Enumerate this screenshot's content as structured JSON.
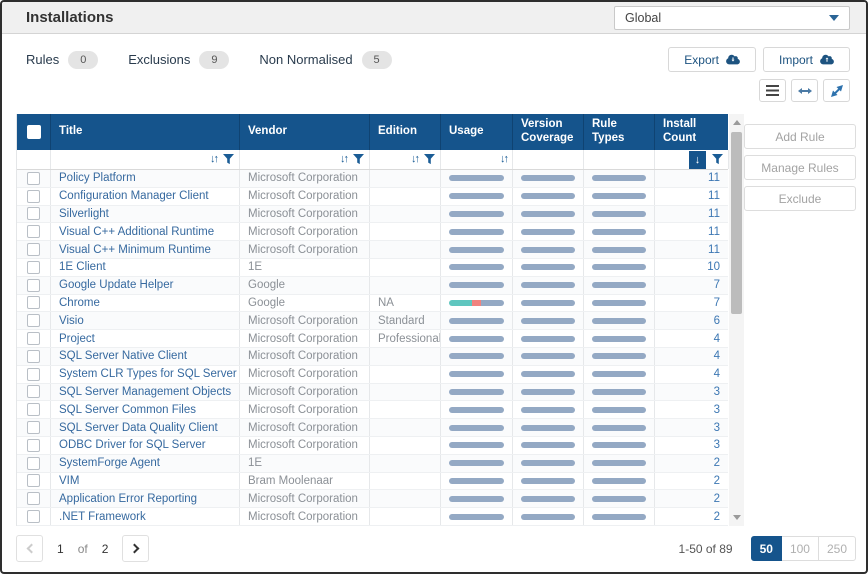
{
  "header": {
    "title": "Installations",
    "scope": {
      "value": "Global"
    }
  },
  "toolbar": {
    "tabs": [
      {
        "label": "Rules",
        "count": "0"
      },
      {
        "label": "Exclusions",
        "count": "9"
      },
      {
        "label": "Non Normalised",
        "count": "5"
      }
    ],
    "export_label": "Export",
    "import_label": "Import"
  },
  "table": {
    "columns": [
      "Title",
      "Vendor",
      "Edition",
      "Usage",
      "Version Coverage",
      "Rule Types",
      "Install Count"
    ],
    "default_bar": [
      [
        "#94a9c4",
        100
      ]
    ],
    "rows": [
      {
        "title": "Policy Platform",
        "vendor": "Microsoft Corporation",
        "edition": "",
        "count": "11"
      },
      {
        "title": "Configuration Manager Client",
        "vendor": "Microsoft Corporation",
        "edition": "",
        "count": "11"
      },
      {
        "title": "Silverlight",
        "vendor": "Microsoft Corporation",
        "edition": "",
        "count": "11"
      },
      {
        "title": "Visual C++ Additional Runtime",
        "vendor": "Microsoft Corporation",
        "edition": "",
        "count": "11"
      },
      {
        "title": "Visual C++ Minimum Runtime",
        "vendor": "Microsoft Corporation",
        "edition": "",
        "count": "11"
      },
      {
        "title": "1E Client",
        "vendor": "1E",
        "edition": "",
        "count": "10"
      },
      {
        "title": "Google Update Helper",
        "vendor": "Google",
        "edition": "",
        "count": "7"
      },
      {
        "title": "Chrome",
        "vendor": "Google",
        "edition": "NA",
        "count": "7",
        "usage": [
          [
            "#5fc6bf",
            41
          ],
          [
            "#f0837f",
            18
          ],
          [
            "#94a9c4",
            41
          ]
        ]
      },
      {
        "title": "Visio",
        "vendor": "Microsoft Corporation",
        "edition": "Standard",
        "count": "6"
      },
      {
        "title": "Project",
        "vendor": "Microsoft Corporation",
        "edition": "Professional",
        "count": "4"
      },
      {
        "title": "SQL Server Native Client",
        "vendor": "Microsoft Corporation",
        "edition": "",
        "count": "4"
      },
      {
        "title": "System CLR Types for SQL Server",
        "vendor": "Microsoft Corporation",
        "edition": "",
        "count": "4"
      },
      {
        "title": "SQL Server Management Objects",
        "vendor": "Microsoft Corporation",
        "edition": "",
        "count": "3"
      },
      {
        "title": "SQL Server Common Files",
        "vendor": "Microsoft Corporation",
        "edition": "",
        "count": "3"
      },
      {
        "title": "SQL Server Data Quality Client",
        "vendor": "Microsoft Corporation",
        "edition": "",
        "count": "3"
      },
      {
        "title": "ODBC Driver for SQL Server",
        "vendor": "Microsoft Corporation",
        "edition": "",
        "count": "3"
      },
      {
        "title": "SystemForge Agent",
        "vendor": "1E",
        "edition": "",
        "count": "2"
      },
      {
        "title": "VIM",
        "vendor": "Bram Moolenaar",
        "edition": "",
        "count": "2"
      },
      {
        "title": "Application Error Reporting",
        "vendor": "Microsoft Corporation",
        "edition": "",
        "count": "2"
      },
      {
        "title": ".NET Framework",
        "vendor": "Microsoft Corporation",
        "edition": "",
        "count": "2"
      }
    ]
  },
  "side_actions": [
    "Add Rule",
    "Manage Rules",
    "Exclude"
  ],
  "pagination": {
    "page": "1",
    "of_label": "of",
    "total_pages": "2",
    "range": "1-50 of 89",
    "sizes": [
      "50",
      "100",
      "250"
    ],
    "active_size": "50"
  },
  "icons": {
    "sort_both": "↓↑",
    "sort_desc_active": "↓"
  },
  "colors": {
    "header_blue": "#15548c",
    "bar_gray": "#94a9c4",
    "usage_teal": "#5fc6bf",
    "usage_red": "#f0837f",
    "link_blue": "#36699f",
    "icon_blue": "#1a5c95"
  }
}
